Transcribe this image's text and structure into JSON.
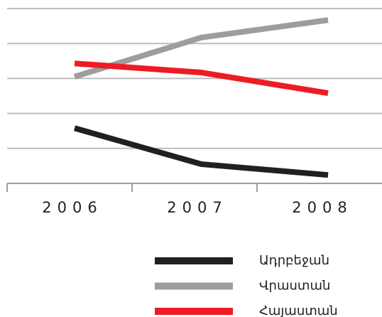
{
  "chart_data": {
    "type": "line",
    "categories": [
      "2006",
      "2007",
      "2008"
    ],
    "series": [
      {
        "name": "Ադրբեջան",
        "color": "#231f20",
        "values": [
          1.58,
          0.55,
          0.24
        ]
      },
      {
        "name": "Վրաստան",
        "color": "#9d9d9d",
        "values": [
          3.05,
          4.17,
          4.67
        ]
      },
      {
        "name": "Հայաստան",
        "color": "#ed1c24",
        "values": [
          3.43,
          3.17,
          2.58
        ]
      }
    ],
    "ylim": [
      0,
      5
    ],
    "yticks": [
      0,
      1,
      2,
      3,
      4,
      5
    ],
    "grid": true,
    "legend": "bottom"
  }
}
